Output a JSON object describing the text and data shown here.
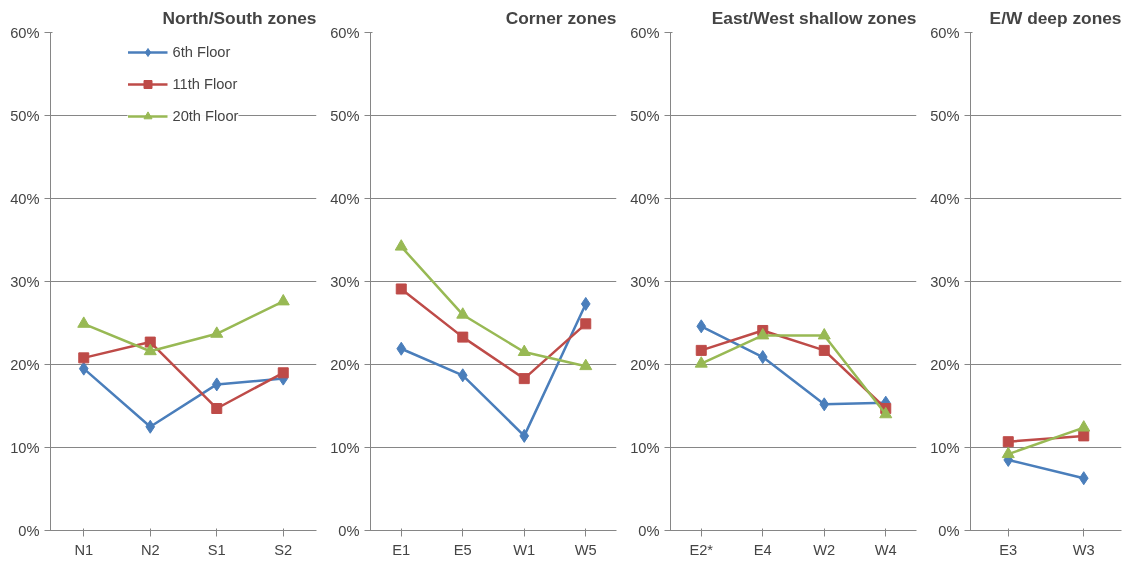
{
  "chart_data": [
    {
      "type": "line",
      "title": "North/South zones",
      "categories": [
        "N1",
        "N2",
        "S1",
        "S2"
      ],
      "ylim": [
        0,
        60
      ],
      "yticks": [
        {
          "value": 0,
          "label": "0%"
        },
        {
          "value": 10,
          "label": "10%"
        },
        {
          "value": 20,
          "label": "20%"
        },
        {
          "value": 30,
          "label": "30%"
        },
        {
          "value": 40,
          "label": "40%"
        },
        {
          "value": 50,
          "label": "50%"
        },
        {
          "value": 60,
          "label": "60%"
        }
      ],
      "grid": "y",
      "legend": "top",
      "series": [
        {
          "name": "6th Floor",
          "color": "#4a7ebb",
          "marker": "diamond",
          "values": [
            19.5,
            12.5,
            17.6,
            18.3
          ]
        },
        {
          "name": "11th Floor",
          "color": "#be4b48",
          "marker": "square",
          "values": [
            20.8,
            22.7,
            14.7,
            19.0
          ]
        },
        {
          "name": "20th Floor",
          "color": "#98b954",
          "marker": "triangle",
          "values": [
            24.9,
            21.6,
            23.7,
            27.6
          ]
        }
      ]
    },
    {
      "type": "line",
      "title": "Corner zones",
      "categories": [
        "E1",
        "E5",
        "W1",
        "W5"
      ],
      "ylim": [
        0,
        60
      ],
      "yticks": [
        {
          "value": 0,
          "label": "0%"
        },
        {
          "value": 10,
          "label": "10%"
        },
        {
          "value": 20,
          "label": "20%"
        },
        {
          "value": 30,
          "label": "30%"
        },
        {
          "value": 40,
          "label": "40%"
        },
        {
          "value": 50,
          "label": "50%"
        },
        {
          "value": 60,
          "label": "60%"
        }
      ],
      "grid": "y",
      "series": [
        {
          "color": "#4a7ebb",
          "marker": "diamond",
          "values": [
            21.9,
            18.7,
            11.4,
            27.3
          ]
        },
        {
          "color": "#be4b48",
          "marker": "square",
          "values": [
            29.1,
            23.3,
            18.3,
            24.9
          ]
        },
        {
          "color": "#98b954",
          "marker": "triangle",
          "values": [
            34.2,
            26.0,
            21.5,
            19.8
          ]
        }
      ]
    },
    {
      "type": "line",
      "title": "East/West shallow zones",
      "categories": [
        "E2*",
        "E4",
        "W2",
        "W4"
      ],
      "ylim": [
        0,
        60
      ],
      "yticks": [
        {
          "value": 0,
          "label": "0%"
        },
        {
          "value": 10,
          "label": "10%"
        },
        {
          "value": 20,
          "label": "20%"
        },
        {
          "value": 30,
          "label": "30%"
        },
        {
          "value": 40,
          "label": "40%"
        },
        {
          "value": 50,
          "label": "50%"
        },
        {
          "value": 60,
          "label": "60%"
        }
      ],
      "grid": "y",
      "series": [
        {
          "color": "#4a7ebb",
          "marker": "diamond",
          "values": [
            24.6,
            20.9,
            15.2,
            15.4
          ]
        },
        {
          "color": "#be4b48",
          "marker": "square",
          "values": [
            21.7,
            24.1,
            21.7,
            14.7
          ]
        },
        {
          "color": "#98b954",
          "marker": "triangle",
          "values": [
            20.1,
            23.5,
            23.5,
            14.0
          ]
        }
      ]
    },
    {
      "type": "line",
      "title": "E/W deep zones",
      "categories": [
        "E3",
        "W3"
      ],
      "ylim": [
        0,
        60
      ],
      "yticks": [
        {
          "value": 0,
          "label": "0%"
        },
        {
          "value": 10,
          "label": "10%"
        },
        {
          "value": 20,
          "label": "20%"
        },
        {
          "value": 30,
          "label": "30%"
        },
        {
          "value": 40,
          "label": "40%"
        },
        {
          "value": 50,
          "label": "50%"
        },
        {
          "value": 60,
          "label": "60%"
        }
      ],
      "grid": "y",
      "series": [
        {
          "color": "#4a7ebb",
          "marker": "diamond",
          "values": [
            8.5,
            6.3
          ]
        },
        {
          "color": "#be4b48",
          "marker": "square",
          "values": [
            10.7,
            11.4
          ]
        },
        {
          "color": "#98b954",
          "marker": "triangle",
          "values": [
            9.2,
            12.4
          ]
        }
      ]
    }
  ]
}
